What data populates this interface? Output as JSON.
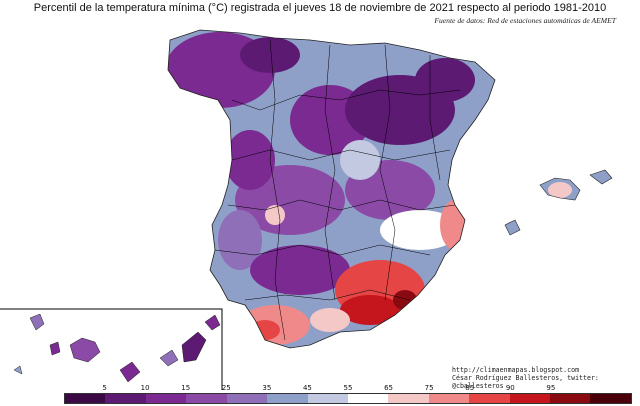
{
  "title": "Percentil de la temperatura mínima (°C) registrada el jueves 18 de noviembre de 2021 respecto al periodo 1981-2010",
  "source": "Fuente de datos: Red de estaciones automáticas de AEMET",
  "credits": {
    "url": "http://climaenmapas.blogspot.com",
    "author": "César Rodríguez Ballesteros, twitter: @cballesteros"
  },
  "legend": {
    "labels": [
      "5",
      "10",
      "15",
      "25",
      "35",
      "45",
      "55",
      "65",
      "75",
      "85",
      "90",
      "95"
    ],
    "colors": [
      "#3b0a45",
      "#5c1a73",
      "#7a2a90",
      "#8a4aa6",
      "#8e6fb8",
      "#8fa0c8",
      "#c2c9e0",
      "#ffffff",
      "#f5c8c8",
      "#f08a8a",
      "#e64545",
      "#c4161c",
      "#8a0a12",
      "#4a0008"
    ]
  },
  "colors": {
    "coast": "#222222",
    "border": "#000000",
    "inset_frame": "#000000"
  }
}
